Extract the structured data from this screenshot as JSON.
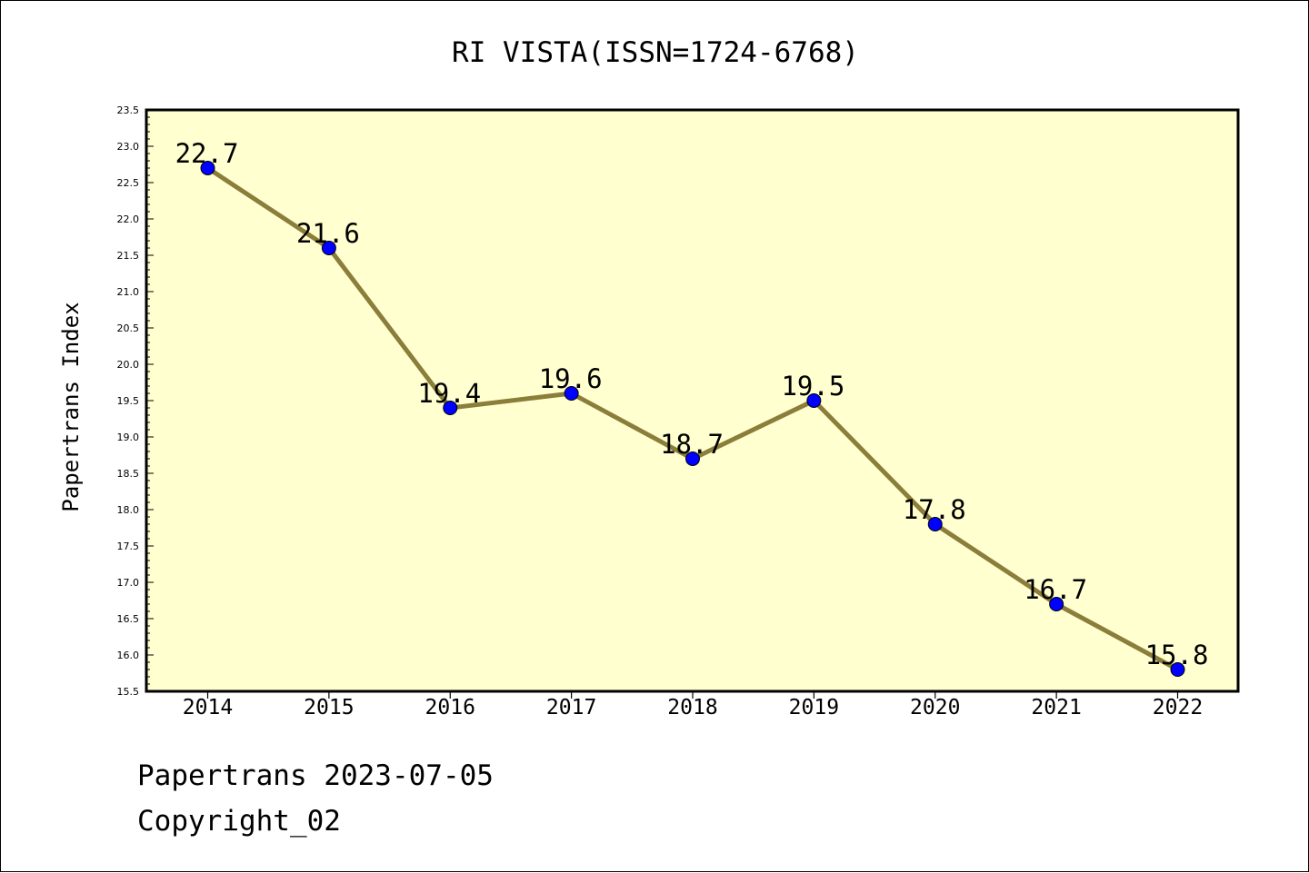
{
  "chart_data": {
    "type": "line",
    "title": "RI VISTA(ISSN=1724-6768)",
    "xlabel": "",
    "ylabel": "Papertrans Index",
    "categories": [
      "2014",
      "2015",
      "2016",
      "2017",
      "2018",
      "2019",
      "2020",
      "2021",
      "2022"
    ],
    "series": [
      {
        "values": [
          22.7,
          21.6,
          19.4,
          19.6,
          18.7,
          19.5,
          17.8,
          16.7,
          15.8
        ]
      }
    ],
    "data_labels": [
      "22.7",
      "21.6",
      "19.4",
      "19.6",
      "18.7",
      "19.5",
      "17.8",
      "16.7",
      "15.8"
    ],
    "ylim": [
      15.5,
      23.5
    ],
    "yticks": [
      "15.5",
      "16.0",
      "16.5",
      "17.0",
      "17.5",
      "18.0",
      "18.5",
      "19.0",
      "19.5",
      "20.0",
      "20.5",
      "21.0",
      "21.5",
      "22.0",
      "22.5",
      "23.0",
      "23.5"
    ],
    "grid": false,
    "legend": "none",
    "colors": {
      "plot_background": "#ffffd0",
      "line": "#8b7d3a",
      "marker": "#0000ff"
    }
  },
  "footer": {
    "date_line": "Papertrans 2023-07-05",
    "copyright_line": "Copyright_02"
  }
}
